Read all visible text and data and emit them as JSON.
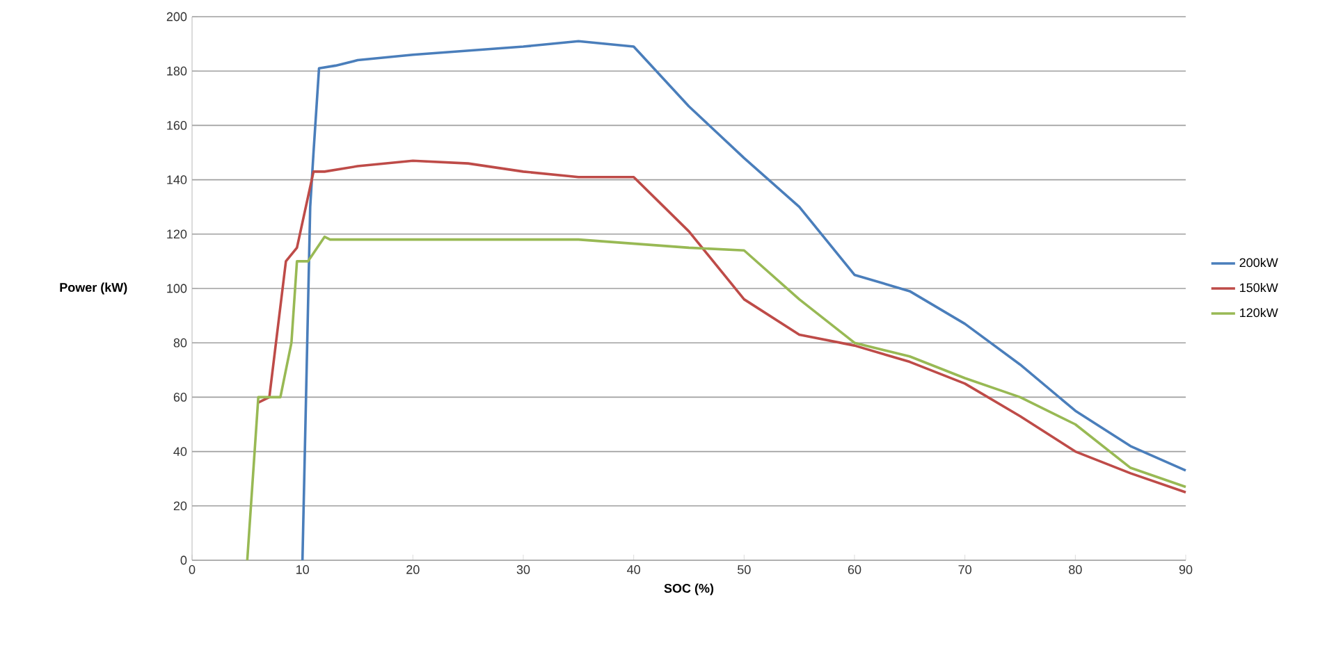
{
  "chart_data": {
    "type": "line",
    "xlabel": "SOC (%)",
    "ylabel": "Power (kW)",
    "xlim": [
      0,
      90
    ],
    "xticks": [
      0,
      10,
      20,
      30,
      40,
      50,
      60,
      70,
      80,
      90
    ],
    "ylim": [
      0,
      200
    ],
    "yticks": [
      0,
      20,
      40,
      60,
      80,
      100,
      120,
      140,
      160,
      180,
      200
    ],
    "grid": "y",
    "legend": "right",
    "marker": "none",
    "line_style": "solid",
    "series": [
      {
        "name": "200kW",
        "color": "#4a7ebb",
        "x": [
          10,
          10.7,
          11,
          11.5,
          13,
          15,
          20,
          30,
          35,
          40,
          45,
          50,
          55,
          60,
          65,
          70,
          75,
          80,
          85,
          90
        ],
        "values": [
          0,
          130,
          150,
          181,
          182,
          184,
          186,
          189,
          191,
          189,
          167,
          148,
          130,
          105,
          99,
          87,
          72,
          55,
          42,
          33
        ]
      },
      {
        "name": "150kW",
        "color": "#be4b48",
        "x": [
          6,
          7,
          8.5,
          9.5,
          11,
          12,
          15,
          20,
          25,
          30,
          35,
          40,
          45,
          50,
          55,
          60,
          65,
          70,
          75,
          80,
          85,
          90
        ],
        "values": [
          58,
          60,
          110,
          115,
          143,
          143,
          145,
          147,
          146,
          143,
          141,
          141,
          121,
          96,
          83,
          79,
          73,
          65,
          53,
          40,
          32,
          25
        ]
      },
      {
        "name": "120kW",
        "color": "#98b954",
        "x": [
          5,
          6,
          7,
          8,
          9,
          9.5,
          10.5,
          12,
          12.5,
          35,
          45,
          50,
          55,
          60,
          65,
          70,
          75,
          80,
          85,
          90
        ],
        "values": [
          0,
          60,
          60,
          60,
          80,
          110,
          110,
          119,
          118,
          118,
          115,
          114,
          96,
          80,
          75,
          67,
          60,
          50,
          34,
          27
        ]
      }
    ]
  }
}
